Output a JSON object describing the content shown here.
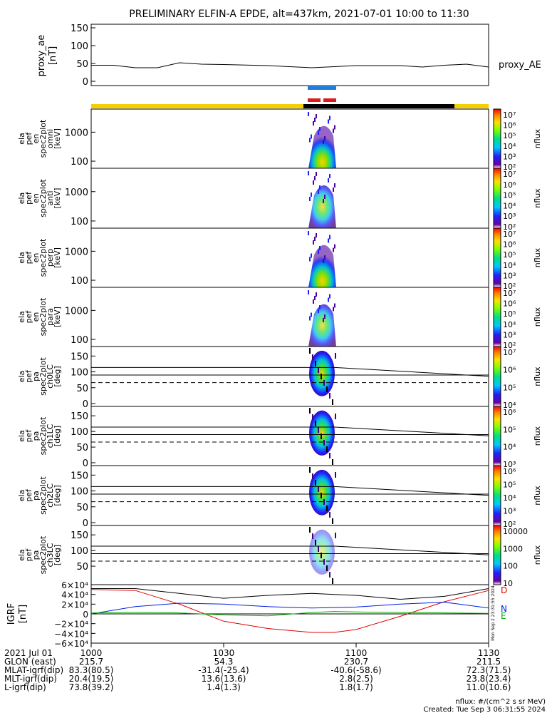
{
  "title": "PRELIMINARY ELFIN-A EPDE, alt=437km, 2021-07-01 10:00 to 11:30",
  "colors": {
    "sw_yellow": "#f5d000",
    "sw_black": "#000000",
    "blue_bar": "#1a7fe0",
    "red_bar": "#e01a1a",
    "grf_D": "#e00000",
    "grf_N": "#0020e0",
    "grf_E": "#00b000",
    "grf_total": "#000000"
  },
  "proxy_panel": {
    "ylabel": "proxy_ae\n[nT]",
    "legend": "proxy_AE",
    "yticks": [
      "150",
      "100",
      "50",
      "0"
    ]
  },
  "spectro_panels": [
    {
      "ylabel": [
        "ela",
        "pef",
        "en",
        "spec2plot",
        "omni",
        "[keV]"
      ],
      "yticks": [
        "1000",
        "100"
      ],
      "cbar_labels": [
        "10⁷",
        "10⁶",
        "10⁵",
        "10⁴",
        "10³",
        "10²"
      ],
      "cbar_title": "nflux"
    },
    {
      "ylabel": [
        "ela",
        "pef",
        "en",
        "spec2plot",
        "anti",
        "[keV]"
      ],
      "yticks": [
        "1000",
        "100"
      ],
      "cbar_labels": [
        "10⁷",
        "10⁶",
        "10⁵",
        "10⁴",
        "10³",
        "10²"
      ],
      "cbar_title": "nflux"
    },
    {
      "ylabel": [
        "ela",
        "pef",
        "en",
        "spec2plot",
        "perp",
        "[keV]"
      ],
      "yticks": [
        "1000",
        "100"
      ],
      "cbar_labels": [
        "10⁷",
        "10⁶",
        "10⁵",
        "10⁴",
        "10³",
        "10²"
      ],
      "cbar_title": "nflux"
    },
    {
      "ylabel": [
        "ela",
        "pef",
        "en",
        "spec2plot",
        "para",
        "[keV]"
      ],
      "yticks": [
        "1000",
        "100"
      ],
      "cbar_labels": [
        "10⁷",
        "10⁶",
        "10⁵",
        "10⁴",
        "10³",
        "10²"
      ],
      "cbar_title": "nflux"
    }
  ],
  "pa_panels": [
    {
      "ylabel": [
        "ela",
        "pef",
        "pa",
        "spec2plot",
        "ch0LC",
        "[deg]"
      ],
      "yticks": [
        "150",
        "100",
        "50",
        "0"
      ],
      "cbar_labels": [
        "10⁷",
        "10⁶",
        "10⁵",
        "10⁴"
      ],
      "cbar_title": "nflux"
    },
    {
      "ylabel": [
        "ela",
        "pef",
        "pa",
        "spec2plot",
        "ch1LC",
        "[deg]"
      ],
      "yticks": [
        "150",
        "100",
        "50",
        "0"
      ],
      "cbar_labels": [
        "10⁶",
        "10⁵",
        "10⁴",
        "10³"
      ],
      "cbar_title": "nflux"
    },
    {
      "ylabel": [
        "ela",
        "pef",
        "pa",
        "spec2plot",
        "ch2LC",
        "[deg]"
      ],
      "yticks": [
        "150",
        "100",
        "50",
        "0"
      ],
      "cbar_labels": [
        "10⁶",
        "10⁵",
        "10⁴",
        "10³",
        "10²"
      ],
      "cbar_title": "nflux"
    },
    {
      "ylabel": [
        "ela",
        "pef",
        "pa",
        "spec2plot",
        "ch3LC",
        "[deg]"
      ],
      "yticks": [
        "150",
        "100",
        "50"
      ],
      "cbar_labels": [
        "10000",
        "1000",
        "100",
        "10"
      ],
      "cbar_title": "nflux"
    }
  ],
  "grf_panel": {
    "ylabel": "IGRF\n[nT]",
    "yticks": [
      "6×10⁴",
      "4×10⁴",
      "2×10⁴",
      "0",
      "−2×10⁴",
      "−4×10⁴",
      "−6×10⁴"
    ],
    "legend": [
      "D",
      "N",
      "E"
    ],
    "side_text": "Mon Sep  2 23:31:55 2024"
  },
  "footer": {
    "row_labels": [
      "2021 Jul 01",
      "GLON (east)",
      "MLAT-igrf(dip)",
      "MLT-igrf(dip)",
      "L-igrf(dip)"
    ],
    "columns": [
      {
        "values": [
          "1000",
          "215.7",
          "83.3(80.5)",
          "20.4(19.5)",
          "73.8(39.2)"
        ]
      },
      {
        "values": [
          "1030",
          "54.3",
          "-31.4(-25.4)",
          "13.6(13.6)",
          "1.4(1.3)"
        ]
      },
      {
        "values": [
          "1100",
          "230.7",
          "-40.6(-58.6)",
          "2.8(2.5)",
          "1.8(1.7)"
        ]
      },
      {
        "values": [
          "1130",
          "211.5",
          "72.3(71.5)",
          "23.8(23.4)",
          "11.0(10.6)"
        ]
      }
    ],
    "units_note": "nflux: #/(cm^2 s sr MeV)",
    "created": "Created: Tue Sep  3 06:31:55 2024"
  },
  "chart_data": {
    "type": "line",
    "x_range": [
      "10:00",
      "11:30"
    ],
    "x_ticks": [
      "1000",
      "1030",
      "1100",
      "1130"
    ],
    "proxy_ae": {
      "name": "proxy_AE",
      "x": [
        0,
        5,
        10,
        15,
        20,
        25,
        30,
        40,
        50,
        60,
        70,
        75,
        80,
        85,
        90
      ],
      "y": [
        45,
        45,
        38,
        38,
        52,
        48,
        47,
        44,
        38,
        44,
        44,
        40,
        45,
        48,
        40
      ],
      "ylim": [
        0,
        160
      ]
    },
    "igrf": {
      "ylim": [
        -60000,
        60000
      ],
      "series": [
        {
          "name": "D",
          "x": [
            0,
            10,
            20,
            30,
            40,
            50,
            55,
            60,
            70,
            80,
            90
          ],
          "y": [
            50000,
            48000,
            20000,
            -15000,
            -30000,
            -38000,
            -38000,
            -32000,
            -5000,
            25000,
            48000
          ]
        },
        {
          "name": "N",
          "x": [
            0,
            10,
            20,
            30,
            40,
            50,
            55,
            60,
            70,
            80,
            90
          ],
          "y": [
            0,
            15000,
            22000,
            20000,
            15000,
            12000,
            13000,
            14000,
            20000,
            24000,
            12000
          ]
        },
        {
          "name": "E",
          "x": [
            0,
            10,
            20,
            30,
            40,
            50,
            55,
            60,
            70,
            80,
            90
          ],
          "y": [
            2000,
            3000,
            2000,
            -2000,
            -4000,
            3000,
            5000,
            4000,
            3000,
            2000,
            1000
          ]
        },
        {
          "name": "total",
          "x": [
            0,
            10,
            20,
            30,
            40,
            50,
            55,
            60,
            70,
            80,
            90
          ],
          "y": [
            52000,
            52000,
            42000,
            32000,
            38000,
            42000,
            40000,
            38000,
            30000,
            36000,
            52000
          ]
        }
      ]
    }
  }
}
